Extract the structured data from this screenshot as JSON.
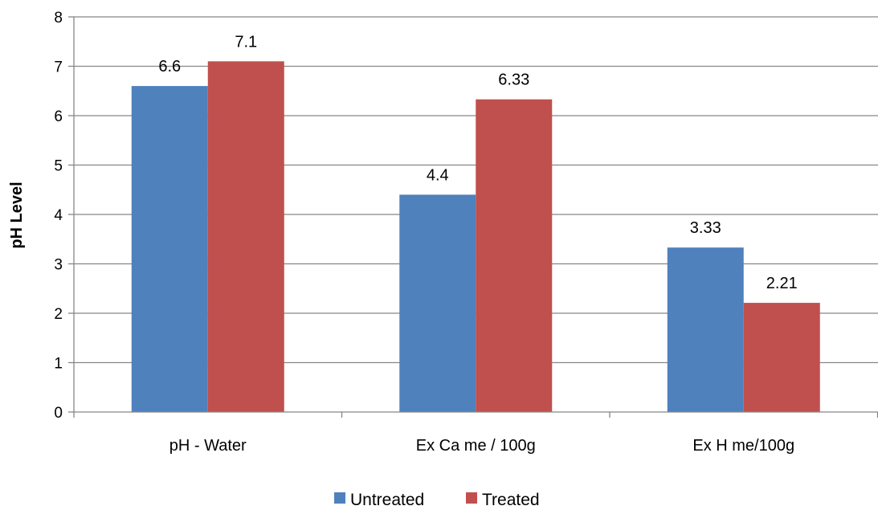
{
  "chart_data": {
    "type": "bar",
    "title": "",
    "xlabel": "",
    "ylabel": "pH Level",
    "categories": [
      "pH - Water",
      "Ex Ca me / 100g",
      "Ex H me/100g"
    ],
    "series": [
      {
        "name": "Untreated",
        "values": [
          6.6,
          4.4,
          3.33
        ],
        "labels": [
          "6.6",
          "4.4",
          "3.33"
        ],
        "color": "#4F81BD"
      },
      {
        "name": "Treated",
        "values": [
          7.1,
          6.33,
          2.21
        ],
        "labels": [
          "7.1",
          "6.33",
          "2.21"
        ],
        "color": "#C0504D"
      }
    ],
    "ylim": [
      0,
      8
    ],
    "yticks": [
      0,
      1,
      2,
      3,
      4,
      5,
      6,
      7,
      8
    ],
    "grid": true,
    "legend": "bottom"
  }
}
